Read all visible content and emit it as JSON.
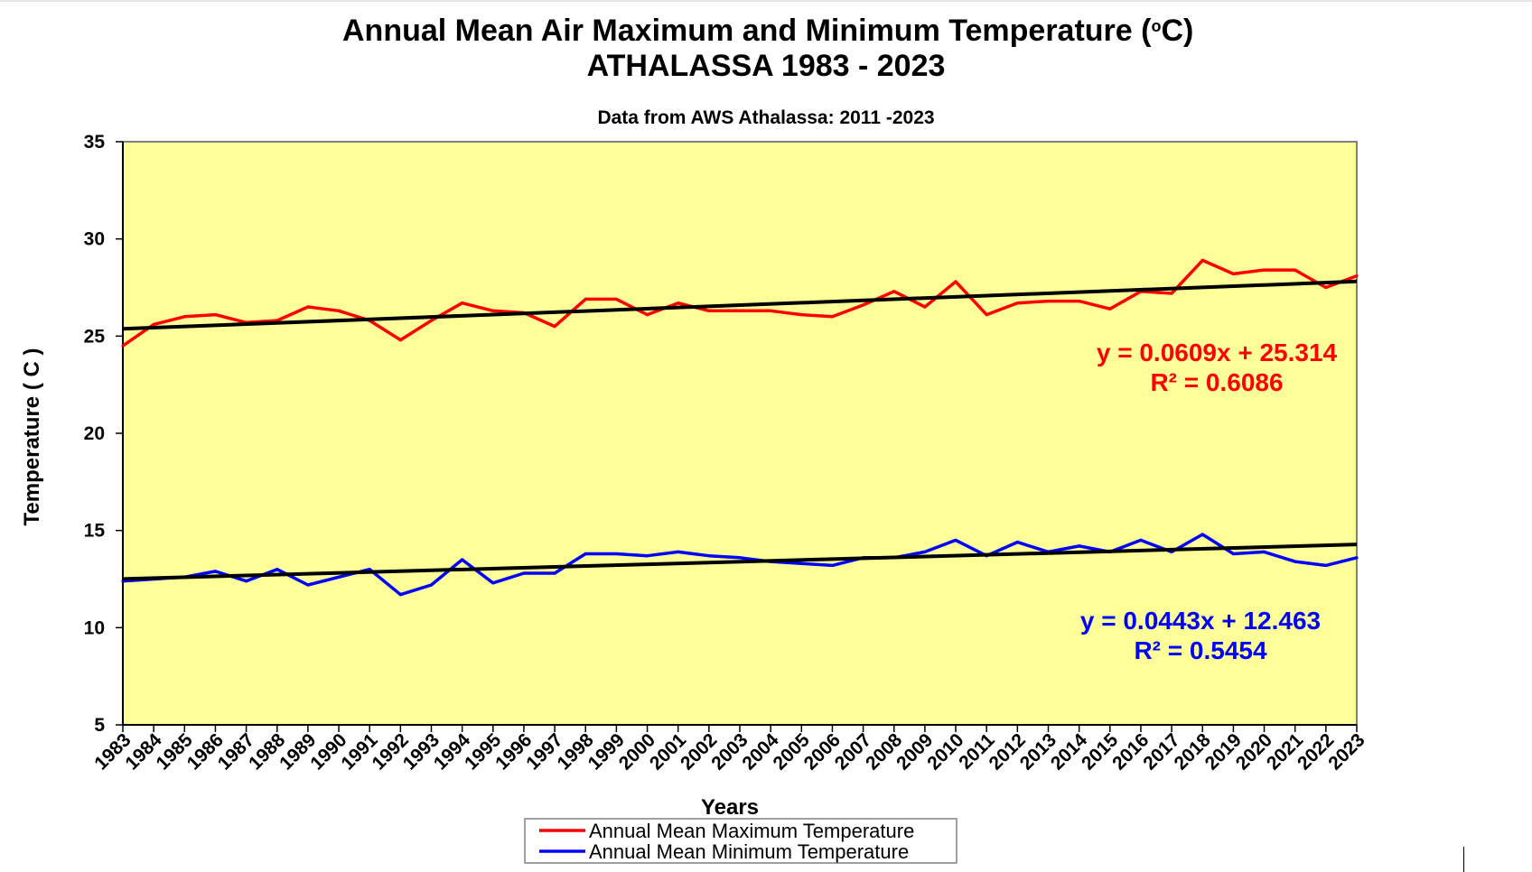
{
  "chart_data": {
    "type": "line",
    "title_line1": "Annual  Mean Air Maximum and Minimum Temperature (",
    "title_degree": "o",
    "title_unit": "C)",
    "title_line2": "ATHALASSA  1983 - 2023",
    "subtitle": "Data from AWS Athalassa: 2011 -2023",
    "xlabel": "Years",
    "ylabel": "Temperature  ( C )",
    "ylim": [
      5,
      35
    ],
    "yticks": [
      5,
      10,
      15,
      20,
      25,
      30,
      35
    ],
    "categories": [
      "1983",
      "1984",
      "1985",
      "1986",
      "1987",
      "1988",
      "1989",
      "1990",
      "1991",
      "1992",
      "1993",
      "1994",
      "1995",
      "1996",
      "1997",
      "1998",
      "1999",
      "2000",
      "2001",
      "2002",
      "2003",
      "2004",
      "2005",
      "2006",
      "2007",
      "2008",
      "2009",
      "2010",
      "2011",
      "2012",
      "2013",
      "2014",
      "2015",
      "2016",
      "2017",
      "2018",
      "2019",
      "2020",
      "2021",
      "2022",
      "2023"
    ],
    "grid": false,
    "plot_background": "#ffff99",
    "legend_position": "bottom",
    "series": [
      {
        "name": "Annual Mean  Maximum Temperature",
        "color": "#ff0000",
        "values": [
          24.5,
          25.6,
          26.0,
          26.1,
          25.7,
          25.8,
          26.5,
          26.3,
          25.8,
          24.8,
          25.8,
          26.7,
          26.3,
          26.2,
          25.5,
          26.9,
          26.9,
          26.1,
          26.7,
          26.3,
          26.3,
          26.3,
          26.1,
          26.0,
          26.6,
          27.3,
          26.5,
          27.8,
          26.1,
          26.7,
          26.8,
          26.8,
          26.4,
          27.3,
          27.2,
          28.9,
          28.2,
          28.4,
          28.4,
          27.5,
          28.1
        ],
        "trendline": {
          "color": "#000000",
          "slope": 0.0609,
          "intercept": 25.314,
          "equation": "y = 0.0609x + 25.314",
          "r2": "R² = 0.6086"
        }
      },
      {
        "name": "Annual Mean  Minimum Temperature",
        "color": "#0000ff",
        "values": [
          12.4,
          12.5,
          12.6,
          12.9,
          12.4,
          13.0,
          12.2,
          12.6,
          13.0,
          11.7,
          12.2,
          13.5,
          12.3,
          12.8,
          12.8,
          13.8,
          13.8,
          13.7,
          13.9,
          13.7,
          13.6,
          13.4,
          13.3,
          13.2,
          13.6,
          13.6,
          13.9,
          14.5,
          13.7,
          14.4,
          13.9,
          14.2,
          13.9,
          14.5,
          13.9,
          14.8,
          13.8,
          13.9,
          13.4,
          13.2,
          13.6
        ],
        "trendline": {
          "color": "#000000",
          "slope": 0.0443,
          "intercept": 12.463,
          "equation": "y = 0.0443x + 12.463",
          "r2": "R² = 0.5454"
        }
      }
    ]
  }
}
